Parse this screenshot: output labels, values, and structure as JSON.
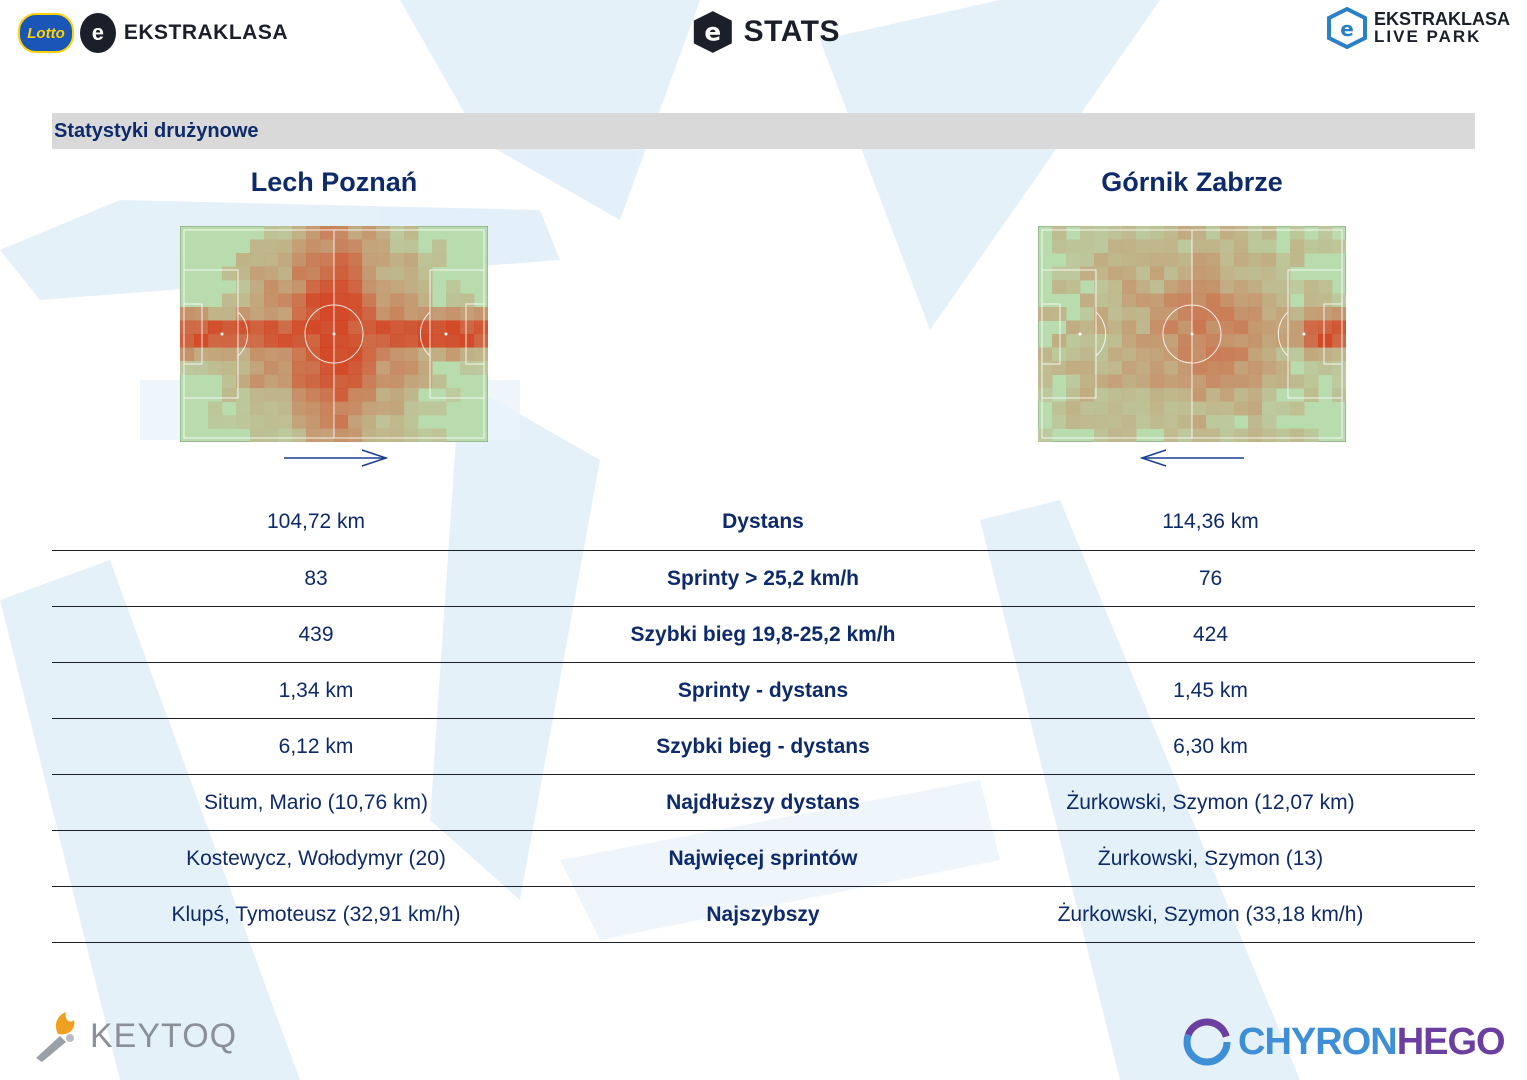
{
  "header": {
    "left_logo_badge": "Lotto",
    "left_logo_text": "EKSTRAKLASA",
    "center_logo_text": "STATS",
    "right_logo_line1": "EKSTRAKLASA",
    "right_logo_line2": "LIVE PARK"
  },
  "section": {
    "title": "Statystyki drużynowe"
  },
  "teams": {
    "home": {
      "name": "Lech Poznań",
      "attack_direction": "right"
    },
    "away": {
      "name": "Górnik Zabrze",
      "attack_direction": "left"
    }
  },
  "colors": {
    "accent": "#0d2a6b",
    "heat_high": "#d23a1a",
    "pitch": "#b9dcae"
  },
  "stats": [
    {
      "label": "Dystans",
      "home": "104,72 km",
      "away": "114,36 km"
    },
    {
      "label": "Sprinty > 25,2 km/h",
      "home": "83",
      "away": "76"
    },
    {
      "label": "Szybki bieg 19,8-25,2 km/h",
      "home": "439",
      "away": "424"
    },
    {
      "label": "Sprinty - dystans",
      "home": "1,34 km",
      "away": "1,45 km"
    },
    {
      "label": "Szybki bieg - dystans",
      "home": "6,12 km",
      "away": "6,30 km"
    },
    {
      "label": "Najdłuższy dystans",
      "home": "Situm, Mario (10,76 km)",
      "away": "Żurkowski, Szymon (12,07 km)"
    },
    {
      "label": "Najwięcej sprintów",
      "home": "Kostewycz, Wołodymyr (20)",
      "away": "Żurkowski, Szymon (13)"
    },
    {
      "label": "Najszybszy",
      "home": "Klupś, Tymoteusz (32,91 km/h)",
      "away": "Żurkowski, Szymon (33,18 km/h)"
    }
  ],
  "footer": {
    "left_logo_text": "KEYTOQ",
    "right_logo_part1": "CHYRON",
    "right_logo_part2": "HEGO"
  }
}
